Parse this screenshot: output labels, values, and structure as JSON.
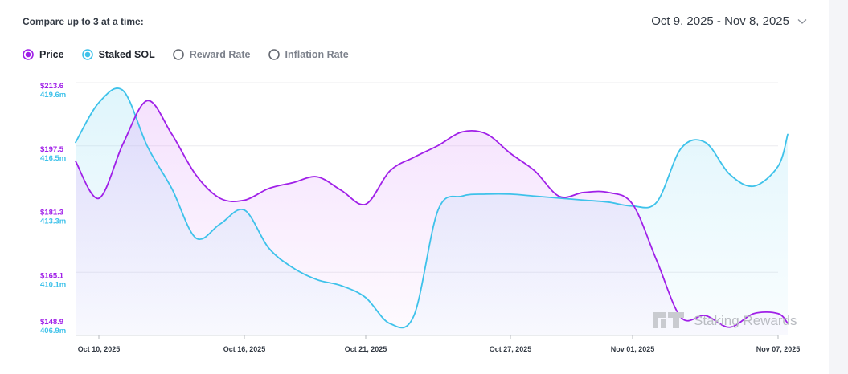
{
  "header": {
    "compare_label": "Compare up to 3 at a time:",
    "date_range": "Oct 9, 2025 - Nov 8, 2025"
  },
  "legend": [
    {
      "label": "Price",
      "active": true,
      "color": "#a020e8"
    },
    {
      "label": "Staked SOL",
      "active": true,
      "color": "#3ec2ea"
    },
    {
      "label": "Reward Rate",
      "active": false,
      "color": "#666a72"
    },
    {
      "label": "Inflation Rate",
      "active": false,
      "color": "#666a72"
    }
  ],
  "watermark": "Staking Rewards",
  "chart_data": {
    "type": "line",
    "x_ticks": [
      "Oct 10, 2025",
      "Oct 16, 2025",
      "Oct 21, 2025",
      "Oct 27, 2025",
      "Nov 01, 2025",
      "Nov 07, 2025"
    ],
    "y_ticks_price": [
      "$213.6",
      "$197.5",
      "$181.3",
      "$165.1",
      "$148.9"
    ],
    "y_ticks_staked": [
      "419.6m",
      "416.5m",
      "413.3m",
      "410.1m",
      "406.9m"
    ],
    "price_range": [
      148.9,
      213.6
    ],
    "staked_range": [
      406.9,
      419.6
    ],
    "grid": true,
    "series": [
      {
        "name": "Price",
        "color": "#a020e8",
        "x": [
          "Oct 9, 2025",
          "Oct 10, 2025",
          "Oct 11, 2025",
          "Oct 12, 2025",
          "Oct 13, 2025",
          "Oct 14, 2025",
          "Oct 15, 2025",
          "Oct 16, 2025",
          "Oct 17, 2025",
          "Oct 18, 2025",
          "Oct 19, 2025",
          "Oct 20, 2025",
          "Oct 21, 2025",
          "Oct 22, 2025",
          "Oct 23, 2025",
          "Oct 24, 2025",
          "Oct 25, 2025",
          "Oct 26, 2025",
          "Oct 27, 2025",
          "Oct 28, 2025",
          "Oct 29, 2025",
          "Oct 30, 2025",
          "Oct 31, 2025",
          "Nov 01, 2025",
          "Nov 02, 2025",
          "Nov 03, 2025",
          "Nov 04, 2025",
          "Nov 05, 2025",
          "Nov 06, 2025",
          "Nov 07, 2025",
          "Nov 08, 2025"
        ],
        "values": [
          193.5,
          184.0,
          198.0,
          209.0,
          200.5,
          190.0,
          184.0,
          183.5,
          186.5,
          188.0,
          189.5,
          186.0,
          182.5,
          191.0,
          194.5,
          197.5,
          201.0,
          200.5,
          195.5,
          191.0,
          184.5,
          185.5,
          185.5,
          182.5,
          168.0,
          153.5,
          154.0,
          151.0,
          154.5,
          154.5,
          152.0
        ]
      },
      {
        "name": "Staked SOL",
        "color": "#3ec2ea",
        "x": [
          "Oct 9, 2025",
          "Oct 10, 2025",
          "Oct 11, 2025",
          "Oct 12, 2025",
          "Oct 13, 2025",
          "Oct 14, 2025",
          "Oct 15, 2025",
          "Oct 16, 2025",
          "Oct 17, 2025",
          "Oct 18, 2025",
          "Oct 19, 2025",
          "Oct 20, 2025",
          "Oct 21, 2025",
          "Oct 22, 2025",
          "Oct 23, 2025",
          "Oct 24, 2025",
          "Oct 25, 2025",
          "Oct 26, 2025",
          "Oct 27, 2025",
          "Oct 28, 2025",
          "Oct 29, 2025",
          "Oct 30, 2025",
          "Oct 31, 2025",
          "Nov 01, 2025",
          "Nov 02, 2025",
          "Nov 03, 2025",
          "Nov 04, 2025",
          "Nov 05, 2025",
          "Nov 06, 2025",
          "Nov 07, 2025",
          "Nov 08, 2025"
        ],
        "values": [
          416.6,
          418.6,
          419.2,
          416.4,
          414.3,
          411.8,
          412.5,
          413.2,
          411.3,
          410.3,
          409.7,
          409.4,
          408.8,
          407.5,
          407.9,
          413.2,
          413.9,
          414.0,
          414.0,
          413.9,
          413.8,
          413.7,
          413.6,
          413.4,
          413.6,
          416.3,
          416.6,
          415.0,
          414.4,
          415.4,
          417.0
        ]
      }
    ]
  }
}
